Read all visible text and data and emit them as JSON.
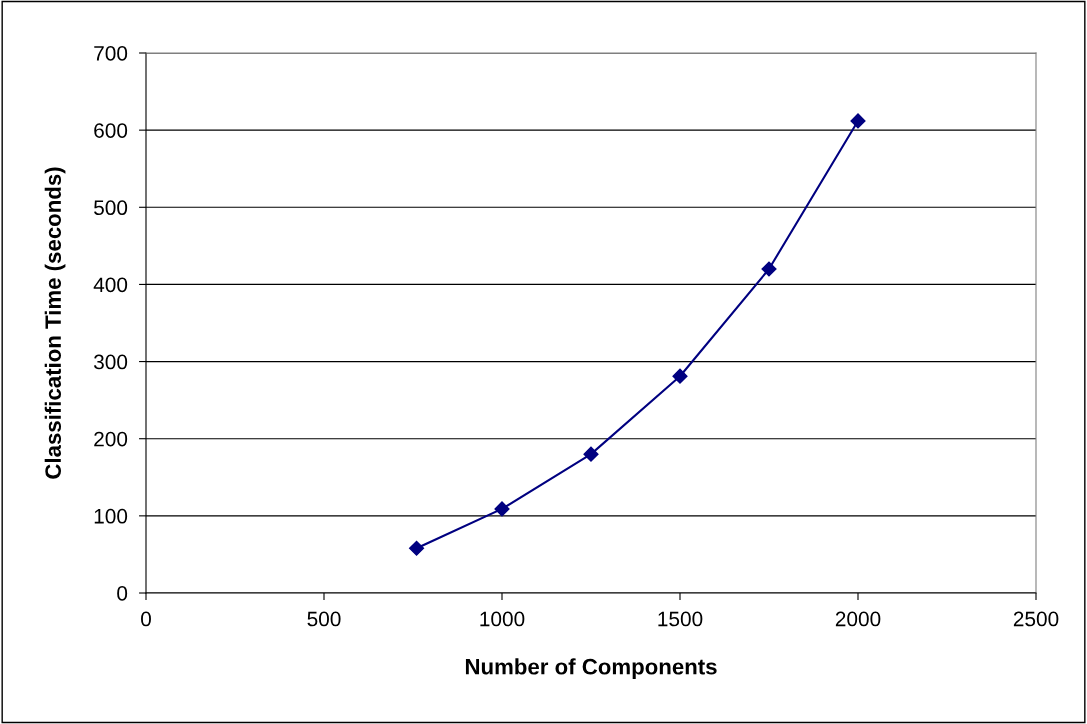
{
  "chart_data": {
    "type": "line",
    "xlabel": "Number of Components",
    "ylabel": "Classification Time (seconds)",
    "series": [
      {
        "color": "#000080",
        "x": [
          760,
          1000,
          1250,
          1500,
          1750,
          2000
        ],
        "values": [
          58,
          109,
          180,
          281,
          420,
          612
        ]
      }
    ],
    "xlim": [
      0,
      2500
    ],
    "xticks": [
      0,
      500,
      1000,
      1500,
      2000,
      2500
    ],
    "ylim": [
      0,
      700
    ],
    "yticks": [
      0,
      100,
      200,
      300,
      400,
      500,
      600,
      700
    ],
    "grid": "y",
    "marker": "diamond",
    "line_style": "solid",
    "legend": false
  }
}
